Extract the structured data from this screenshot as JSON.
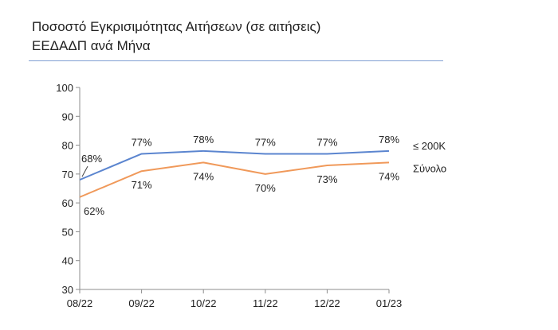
{
  "header": {
    "title_line1": "Ποσοστό Εγκρισιμότητας Αιτήσεων (σε αιτήσεις)",
    "title_line2": "ΕΕΔΑΔΠ ανά Μήνα"
  },
  "chart_data": {
    "type": "line",
    "title": "Ποσοστό Εγκρισιμότητας Αιτήσεων (σε αιτήσεις) ΕΕΔΑΔΠ ανά Μήνα",
    "x": [
      "08/22",
      "09/22",
      "10/22",
      "11/22",
      "12/22",
      "01/23"
    ],
    "ylim": [
      30,
      100
    ],
    "yticks": [
      30,
      40,
      50,
      60,
      70,
      80,
      90,
      100
    ],
    "grid": false,
    "legend_placement": "right",
    "series": [
      {
        "name": "≤ 200K",
        "color": "#5b85cf",
        "values": [
          68,
          77,
          78,
          77,
          77,
          78
        ],
        "labels": [
          "68%",
          "77%",
          "78%",
          "77%",
          "77%",
          "78%"
        ]
      },
      {
        "name": "Σύνολο",
        "color": "#f0995a",
        "values": [
          62,
          71,
          74,
          70,
          73,
          74
        ],
        "labels": [
          "62%",
          "71%",
          "74%",
          "70%",
          "73%",
          "74%"
        ]
      }
    ]
  }
}
